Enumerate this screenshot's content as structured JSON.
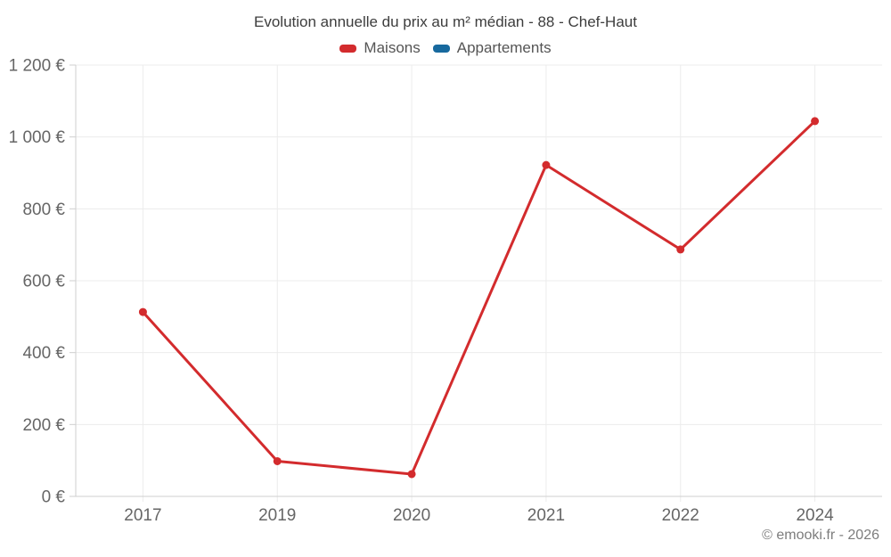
{
  "header": {
    "title": "Evolution annuelle du prix au m² médian - 88 - Chef-Haut"
  },
  "legend": {
    "items": [
      {
        "label": "Maisons",
        "color": "#d32b2d"
      },
      {
        "label": "Appartements",
        "color": "#17699e"
      }
    ]
  },
  "chart_data": {
    "type": "line",
    "title": "Evolution annuelle du prix au m² médian - 88 - Chef-Haut",
    "categories": [
      "2017",
      "2019",
      "2020",
      "2021",
      "2022",
      "2024"
    ],
    "series": [
      {
        "name": "Maisons",
        "color": "#d32b2d",
        "values": [
          513,
          98,
          62,
          922,
          687,
          1044
        ]
      },
      {
        "name": "Appartements",
        "color": "#17699e",
        "values": []
      }
    ],
    "xlabel": "",
    "ylabel": "",
    "ylim": [
      0,
      1200
    ],
    "ytick_step": 200,
    "ytick_labels": [
      "0 €",
      "200 €",
      "400 €",
      "600 €",
      "800 €",
      "1 000 €",
      "1 200 €"
    ],
    "grid": true,
    "legend_position": "top",
    "colors": {
      "gridline": "#ececec",
      "axis": "#cfcfcf",
      "tick_label": "#666666"
    }
  },
  "footer": {
    "copyright": "© emooki.fr - 2026"
  }
}
